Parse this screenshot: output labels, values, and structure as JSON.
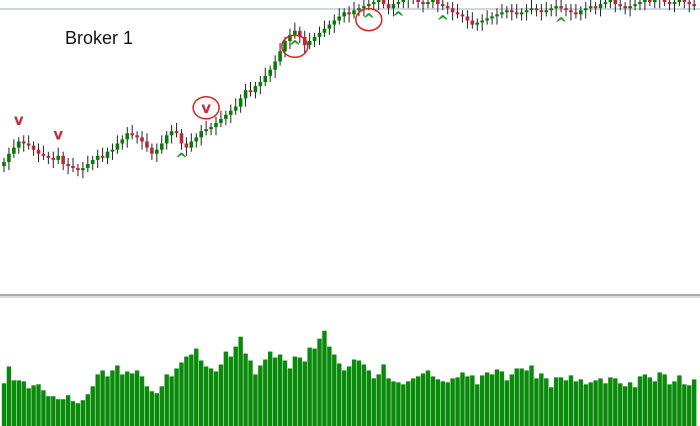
{
  "colors": {
    "bull_candle": "#008000",
    "bear_candle": "#c0243a",
    "wick": "#222222",
    "volume": "#0a8a0a",
    "buy_signal": "#16a016",
    "sell_signal": "#d0283c",
    "highlight_circle": "#e02020",
    "level_line": "#9fb1c2",
    "separator": "#555555"
  },
  "chart_data": [
    {
      "type": "candlestick",
      "title": "Broker 1",
      "ylim": [
        0,
        100
      ],
      "resistance_level": 99,
      "x": [
        0,
        1,
        2,
        3,
        4,
        5,
        6,
        7,
        8,
        9,
        10,
        11,
        12,
        13,
        14,
        15,
        16,
        17,
        18,
        19,
        20,
        21,
        22,
        23,
        24,
        25,
        26,
        27,
        28,
        29,
        30,
        31,
        32,
        33,
        34,
        35,
        36,
        37,
        38,
        39,
        40,
        41,
        42,
        43,
        44,
        45,
        46,
        47,
        48,
        49,
        50,
        51,
        52,
        53,
        54,
        55,
        56,
        57,
        58,
        59,
        60,
        61,
        62,
        63,
        64,
        65,
        66,
        67,
        68,
        69,
        70,
        71,
        72,
        73,
        74,
        75,
        76,
        77,
        78,
        79,
        80,
        81,
        82,
        83,
        84,
        85,
        86,
        87,
        88,
        89,
        90,
        91,
        92,
        93,
        94,
        95,
        96,
        97,
        98,
        99,
        100,
        101,
        102,
        103,
        104,
        105,
        106,
        107,
        108,
        109,
        110,
        111,
        112,
        113,
        114,
        115,
        116,
        117,
        118,
        119,
        120,
        121,
        122,
        123,
        124,
        125,
        126,
        127,
        128,
        129,
        130,
        131,
        132,
        133,
        134,
        135,
        136,
        137,
        138,
        139,
        140
      ],
      "close": [
        21,
        25,
        28,
        31,
        30,
        29,
        27,
        25,
        24,
        23,
        22,
        24,
        20,
        19,
        18,
        17,
        18,
        20,
        22,
        24,
        23,
        26,
        27,
        30,
        32,
        35,
        34,
        33,
        31,
        28,
        25,
        27,
        30,
        34,
        36,
        35,
        30,
        28,
        31,
        33,
        36,
        37,
        38,
        40,
        42,
        44,
        46,
        48,
        52,
        56,
        55,
        58,
        60,
        63,
        66,
        70,
        75,
        80,
        83,
        85,
        82,
        78,
        80,
        82,
        84,
        86,
        88,
        90,
        92,
        94,
        93,
        95,
        96,
        97,
        98,
        99,
        100,
        98,
        96,
        98,
        99,
        100,
        101,
        100,
        99,
        98,
        99,
        100,
        98,
        97,
        96,
        94,
        93,
        92,
        90,
        88,
        89,
        90,
        91,
        92,
        93,
        94,
        95,
        94,
        93,
        94,
        95,
        96,
        95,
        94,
        95,
        96,
        97,
        96,
        95,
        94,
        93,
        95,
        96,
        97,
        96,
        98,
        99,
        100,
        98,
        97,
        96,
        97,
        98,
        99,
        100,
        99,
        101,
        100,
        99,
        98,
        99,
        100,
        99,
        98,
        97
      ],
      "signals": [
        {
          "label": "v",
          "kind": "sell",
          "index": 3
        },
        {
          "label": "v",
          "kind": "sell",
          "index": 11
        },
        {
          "label": "^",
          "kind": "buy",
          "index": 36
        },
        {
          "label": "v",
          "kind": "sell",
          "index": 41,
          "circled": true
        },
        {
          "label": "^",
          "kind": "buy",
          "index": 59,
          "circled": true
        },
        {
          "label": "^",
          "kind": "buy",
          "index": 74,
          "circled": true
        },
        {
          "label": "^",
          "kind": "buy",
          "index": 80
        },
        {
          "label": "^",
          "kind": "buy",
          "index": 89
        },
        {
          "label": "^",
          "kind": "buy",
          "index": 113
        }
      ]
    },
    {
      "type": "bar",
      "title": "",
      "ylim": [
        0,
        130
      ],
      "values": [
        43,
        60,
        46,
        46,
        45,
        38,
        41,
        42,
        36,
        30,
        30,
        27,
        27,
        31,
        25,
        23,
        26,
        32,
        40,
        52,
        56,
        50,
        56,
        61,
        52,
        55,
        53,
        56,
        50,
        40,
        35,
        33,
        40,
        52,
        50,
        58,
        64,
        70,
        72,
        78,
        66,
        60,
        58,
        55,
        62,
        75,
        70,
        80,
        90,
        73,
        66,
        52,
        61,
        67,
        75,
        69,
        72,
        66,
        58,
        70,
        69,
        65,
        79,
        78,
        88,
        96,
        80,
        72,
        63,
        56,
        60,
        67,
        66,
        62,
        56,
        48,
        52,
        62,
        48,
        45,
        44,
        42,
        45,
        48,
        50,
        53,
        56,
        50,
        47,
        45,
        44,
        48,
        49,
        54,
        50,
        51,
        42,
        51,
        54,
        52,
        57,
        55,
        46,
        52,
        58,
        58,
        56,
        61,
        48,
        53,
        48,
        39,
        49,
        49,
        46,
        51,
        45,
        47,
        42,
        44,
        46,
        48,
        43,
        49,
        48,
        43,
        40,
        44,
        39,
        50,
        52,
        49,
        45,
        54,
        52,
        42,
        45,
        51,
        42,
        41,
        47
      ]
    }
  ]
}
